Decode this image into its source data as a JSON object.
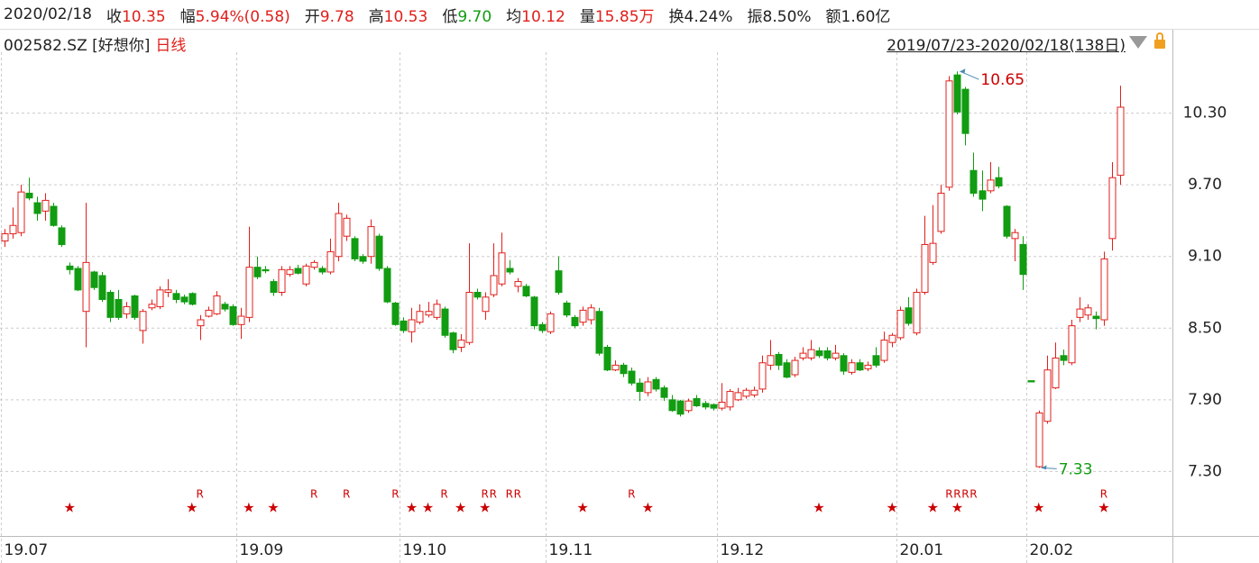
{
  "header": {
    "date": "2020/02/18",
    "items": [
      {
        "label": "收",
        "value": "10.35",
        "color": "#e0201c"
      },
      {
        "label": "幅",
        "value": "5.94%(0.58)",
        "color": "#e0201c"
      },
      {
        "label": "开",
        "value": "9.78",
        "color": "#e0201c"
      },
      {
        "label": "高",
        "value": "10.53",
        "color": "#e0201c"
      },
      {
        "label": "低",
        "value": "9.70",
        "color": "#119c11"
      },
      {
        "label": "均",
        "value": "10.12",
        "color": "#e0201c"
      },
      {
        "label": "量",
        "value": "15.85万",
        "color": "#e0201c"
      },
      {
        "label": "换",
        "value": "4.24%",
        "color": "#222222"
      },
      {
        "label": "振",
        "value": "8.50%",
        "color": "#222222"
      },
      {
        "label": "额",
        "value": "1.60亿",
        "color": "#222222"
      }
    ],
    "code": "002582.SZ [好想你]",
    "period": "日线",
    "range": "2019/07/23-2020/02/18(138日)"
  },
  "chart_data": {
    "type": "candlestick",
    "up_color": "#e0201c",
    "down_color": "#119c11",
    "open": [
      9.23,
      9.29,
      9.3,
      9.63,
      9.55,
      9.48,
      9.52,
      9.34,
      9.02,
      9.0,
      8.64,
      8.97,
      8.94,
      8.8,
      8.74,
      8.62,
      8.77,
      8.48,
      8.67,
      8.68,
      8.8,
      8.79,
      8.76,
      8.79,
      8.52,
      8.6,
      8.62,
      8.7,
      8.68,
      8.53,
      8.59,
      9.01,
      8.99,
      8.89,
      8.8,
      8.95,
      9.0,
      8.87,
      9.01,
      9.0,
      8.97,
      9.1,
      9.27,
      9.25,
      9.1,
      9.1,
      9.27,
      9.0,
      8.71,
      8.56,
      8.47,
      8.55,
      8.61,
      8.59,
      8.66,
      8.46,
      8.34,
      8.38,
      8.8,
      8.64,
      8.78,
      8.87,
      9.0,
      8.85,
      8.85,
      8.76,
      8.53,
      8.47,
      8.98,
      8.71,
      8.59,
      8.55,
      8.57,
      8.64,
      8.34,
      8.15,
      8.19,
      8.14,
      8.04,
      7.96,
      8.07,
      8.0,
      7.9,
      7.89,
      7.81,
      7.91,
      7.87,
      7.86,
      7.83,
      7.84,
      7.9,
      7.93,
      7.94,
      7.99,
      8.19,
      8.28,
      8.21,
      8.11,
      8.25,
      8.25,
      8.31,
      8.31,
      8.25,
      8.27,
      8.13,
      8.21,
      8.16,
      8.27,
      8.23,
      8.38,
      8.42,
      8.67,
      8.46,
      8.8,
      9.05,
      9.31,
      9.68,
      10.62,
      10.5,
      9.82,
      9.65,
      9.65,
      9.76,
      9.52,
      9.25,
      9.2,
      8.06,
      7.34,
      7.72,
      8.0,
      8.27,
      8.21,
      8.59,
      8.61,
      8.6,
      8.57,
      9.25,
      9.78
    ],
    "high": [
      9.33,
      9.51,
      9.7,
      9.76,
      9.6,
      9.63,
      9.55,
      9.36,
      9.05,
      9.02,
      9.55,
      8.98,
      8.97,
      8.82,
      8.82,
      8.72,
      8.78,
      8.66,
      8.74,
      8.85,
      8.91,
      8.82,
      8.78,
      8.8,
      8.61,
      8.68,
      8.81,
      8.72,
      8.7,
      8.67,
      9.35,
      9.1,
      9.02,
      8.91,
      9.02,
      9.02,
      9.03,
      9.04,
      9.07,
      9.02,
      9.25,
      9.55,
      9.45,
      9.27,
      9.12,
      9.41,
      9.29,
      9.02,
      8.72,
      8.59,
      8.67,
      8.7,
      8.72,
      8.74,
      8.68,
      8.47,
      8.45,
      9.21,
      8.83,
      8.8,
      9.21,
      9.3,
      9.07,
      8.92,
      8.87,
      8.77,
      8.55,
      8.64,
      9.1,
      8.73,
      8.61,
      8.68,
      8.7,
      8.67,
      8.36,
      8.23,
      8.21,
      8.17,
      8.08,
      8.09,
      8.09,
      8.02,
      7.94,
      7.9,
      7.91,
      7.94,
      7.89,
      7.87,
      8.04,
      7.99,
      8.0,
      8.0,
      8.01,
      8.27,
      8.4,
      8.3,
      8.24,
      8.26,
      8.34,
      8.4,
      8.34,
      8.34,
      8.36,
      8.29,
      8.24,
      8.24,
      8.22,
      8.34,
      8.47,
      8.46,
      8.68,
      8.76,
      8.83,
      9.44,
      9.53,
      9.7,
      10.61,
      10.65,
      10.52,
      9.97,
      9.82,
      9.89,
      9.85,
      9.53,
      9.33,
      9.27,
      8.06,
      7.81,
      8.27,
      8.38,
      8.32,
      8.57,
      8.76,
      8.7,
      8.64,
      9.14,
      9.89,
      10.53
    ],
    "low": [
      9.18,
      9.25,
      9.27,
      9.57,
      9.4,
      9.4,
      9.35,
      9.18,
      8.95,
      8.81,
      8.34,
      8.82,
      8.72,
      8.55,
      8.57,
      8.58,
      8.57,
      8.37,
      8.65,
      8.66,
      8.76,
      8.71,
      8.7,
      8.69,
      8.4,
      8.59,
      8.61,
      8.64,
      8.52,
      8.41,
      8.55,
      8.91,
      8.96,
      8.77,
      8.77,
      8.93,
      8.95,
      8.85,
      8.99,
      8.95,
      8.95,
      9.06,
      9.23,
      9.06,
      9.04,
      9.04,
      8.98,
      8.71,
      8.52,
      8.46,
      8.38,
      8.53,
      8.59,
      8.57,
      8.42,
      8.29,
      8.3,
      8.36,
      8.74,
      8.57,
      8.76,
      8.85,
      8.95,
      8.8,
      8.76,
      8.49,
      8.46,
      8.45,
      8.78,
      8.59,
      8.5,
      8.52,
      8.53,
      8.27,
      8.14,
      8.14,
      8.09,
      8.02,
      7.89,
      7.93,
      7.97,
      7.89,
      7.8,
      7.76,
      7.79,
      7.84,
      7.82,
      7.81,
      7.81,
      7.81,
      7.89,
      7.91,
      7.92,
      7.96,
      8.15,
      8.15,
      8.08,
      8.09,
      8.23,
      8.23,
      8.25,
      8.23,
      8.23,
      8.11,
      8.11,
      8.14,
      8.14,
      8.17,
      8.21,
      8.34,
      8.4,
      8.52,
      8.44,
      8.78,
      9.03,
      9.29,
      9.65,
      10.29,
      10.03,
      9.6,
      9.48,
      9.63,
      9.67,
      9.25,
      9.06,
      8.82,
      8.05,
      7.33,
      7.7,
      7.99,
      8.19,
      8.19,
      8.55,
      8.57,
      8.49,
      8.52,
      9.15,
      9.7
    ],
    "close": [
      9.29,
      9.36,
      9.64,
      9.59,
      9.46,
      9.57,
      9.36,
      9.2,
      8.99,
      8.82,
      9.05,
      8.84,
      8.74,
      8.59,
      8.59,
      8.68,
      8.59,
      8.64,
      8.7,
      8.82,
      8.82,
      8.74,
      8.72,
      8.7,
      8.57,
      8.65,
      8.77,
      8.66,
      8.53,
      8.6,
      9.01,
      8.93,
      8.98,
      8.8,
      8.99,
      8.99,
      8.96,
      9.02,
      9.05,
      8.97,
      9.14,
      9.46,
      9.42,
      9.08,
      9.06,
      9.35,
      9.0,
      8.72,
      8.53,
      8.48,
      8.57,
      8.64,
      8.64,
      8.7,
      8.44,
      8.32,
      8.4,
      8.8,
      8.76,
      8.76,
      8.94,
      9.13,
      8.97,
      8.89,
      8.77,
      8.52,
      8.48,
      8.62,
      8.8,
      8.61,
      8.52,
      8.65,
      8.67,
      8.29,
      8.15,
      8.19,
      8.12,
      8.04,
      7.97,
      8.05,
      7.99,
      7.92,
      7.81,
      7.78,
      7.89,
      7.85,
      7.84,
      7.83,
      7.88,
      7.97,
      7.96,
      7.98,
      7.98,
      8.21,
      8.27,
      8.19,
      8.09,
      8.23,
      8.29,
      8.32,
      8.27,
      8.25,
      8.29,
      8.14,
      8.21,
      8.15,
      8.19,
      8.19,
      8.4,
      8.44,
      8.65,
      8.54,
      8.8,
      9.2,
      9.21,
      9.63,
      10.57,
      10.31,
      10.13,
      9.63,
      9.58,
      9.74,
      9.69,
      9.27,
      9.3,
      8.95,
      8.05,
      7.79,
      8.15,
      8.25,
      8.23,
      8.52,
      8.66,
      8.67,
      8.58,
      9.08,
      9.76,
      10.35
    ],
    "ylim": [
      6.76,
      10.81
    ],
    "yticks": [
      {
        "value": 7.3,
        "label": "7.30"
      },
      {
        "value": 7.9,
        "label": "7.90"
      },
      {
        "value": 8.5,
        "label": "8.50"
      },
      {
        "value": 9.1,
        "label": "9.10"
      },
      {
        "value": 9.7,
        "label": "9.70"
      },
      {
        "value": 10.3,
        "label": "10.30"
      }
    ],
    "xticks": [
      {
        "value": 0,
        "label": "19.07"
      },
      {
        "value": 29,
        "label": "19.09"
      },
      {
        "value": 49,
        "label": "19.10"
      },
      {
        "value": 67,
        "label": "19.11"
      },
      {
        "value": 88,
        "label": "19.12"
      },
      {
        "value": 110,
        "label": "20.01"
      },
      {
        "value": 126,
        "label": "20.02"
      }
    ],
    "grid": true,
    "annotations": [
      {
        "index": 117,
        "value": 10.65,
        "color": "#cc0000"
      },
      {
        "index": 127,
        "value": 7.33,
        "color": "#119c11"
      }
    ],
    "events": [
      {
        "index": 8,
        "label": "★"
      },
      {
        "index": 23,
        "label": "★"
      },
      {
        "index": 30,
        "label": "★"
      },
      {
        "index": 33,
        "label": "★"
      },
      {
        "index": 50,
        "label": "★"
      },
      {
        "index": 52,
        "label": "★"
      },
      {
        "index": 56,
        "label": "★"
      },
      {
        "index": 59,
        "label": "★"
      },
      {
        "index": 71,
        "label": "★"
      },
      {
        "index": 79,
        "label": "★"
      },
      {
        "index": 100,
        "label": "★"
      },
      {
        "index": 109,
        "label": "★"
      },
      {
        "index": 114,
        "label": "★"
      },
      {
        "index": 117,
        "label": "★"
      },
      {
        "index": 127,
        "label": "★"
      },
      {
        "index": 135,
        "label": "★"
      },
      {
        "index": 24,
        "label": "R"
      },
      {
        "index": 38,
        "label": "R"
      },
      {
        "index": 42,
        "label": "R"
      },
      {
        "index": 48,
        "label": "R"
      },
      {
        "index": 54,
        "label": "R"
      },
      {
        "index": 59,
        "label": "R"
      },
      {
        "index": 60,
        "label": "R"
      },
      {
        "index": 62,
        "label": "R"
      },
      {
        "index": 63,
        "label": "R"
      },
      {
        "index": 77,
        "label": "R"
      },
      {
        "index": 116,
        "label": "R"
      },
      {
        "index": 117,
        "label": "R"
      },
      {
        "index": 118,
        "label": "R"
      },
      {
        "index": 119,
        "label": "R"
      },
      {
        "index": 135,
        "label": "R"
      }
    ],
    "event_color": "#cc0000"
  }
}
